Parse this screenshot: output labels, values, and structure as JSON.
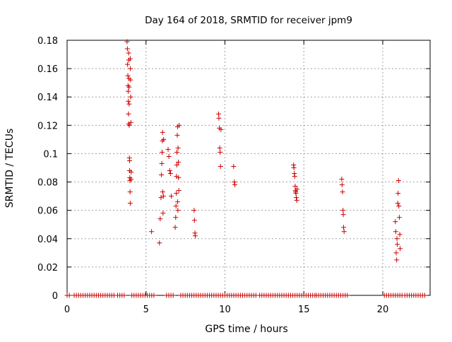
{
  "chart_data": {
    "type": "scatter",
    "title": "Day 164 of 2018, SRMTID for receiver jpm9",
    "xlabel": "GPS time / hours",
    "ylabel": "SRMTID / TECUs",
    "xlim": [
      0,
      23
    ],
    "ylim": [
      0,
      0.18
    ],
    "xticks": [
      0,
      5,
      10,
      15,
      20
    ],
    "xtick_labels": [
      "0",
      "5",
      "10",
      "15",
      "20"
    ],
    "yticks": [
      0,
      0.02,
      0.04,
      0.06,
      0.08,
      0.1,
      0.12,
      0.14,
      0.16,
      0.18
    ],
    "ytick_labels": [
      "0",
      "0.02",
      "0.04",
      "0.06",
      "0.08",
      "0.1",
      "0.12",
      "0.14",
      "0.16",
      "0.18"
    ],
    "grid": true,
    "marker": "+",
    "series": [
      {
        "name": "SRMTID",
        "color": "#cc0000",
        "x": [
          3.8,
          3.82,
          3.83,
          3.85,
          3.86,
          3.87,
          3.88,
          3.89,
          3.9,
          3.9,
          3.91,
          3.92,
          3.93,
          3.93,
          3.94,
          3.95,
          3.96,
          3.96,
          3.97,
          3.98,
          3.99,
          4.0,
          4.0,
          4.01,
          4.02,
          4.03,
          4.04,
          4.05,
          4.06,
          5.35,
          5.85,
          5.9,
          5.95,
          5.98,
          6.0,
          6.02,
          6.04,
          6.05,
          6.06,
          6.08,
          6.1,
          6.12,
          6.4,
          6.45,
          6.5,
          6.55,
          6.6,
          6.85,
          6.88,
          6.9,
          6.92,
          6.93,
          6.95,
          6.96,
          6.98,
          7.0,
          7.0,
          7.02,
          7.03,
          7.05,
          7.06,
          7.08,
          7.1,
          8.05,
          8.07,
          8.1,
          8.12,
          9.6,
          9.62,
          9.65,
          9.67,
          9.7,
          9.72,
          9.75,
          10.55,
          10.6,
          10.63,
          14.35,
          14.37,
          14.4,
          14.42,
          14.45,
          14.47,
          14.48,
          14.5,
          14.52,
          14.55,
          14.57,
          17.4,
          17.42,
          17.45,
          17.48,
          17.5,
          17.52,
          17.55,
          20.8,
          20.82,
          20.85,
          20.88,
          20.9,
          20.92,
          20.95,
          20.97,
          21.0,
          21.02,
          21.05,
          21.08,
          21.1
        ],
        "y": [
          0.179,
          0.174,
          0.163,
          0.155,
          0.148,
          0.144,
          0.137,
          0.128,
          0.121,
          0.171,
          0.166,
          0.153,
          0.147,
          0.135,
          0.12,
          0.097,
          0.095,
          0.088,
          0.083,
          0.081,
          0.073,
          0.065,
          0.167,
          0.16,
          0.152,
          0.14,
          0.122,
          0.082,
          0.087,
          0.045,
          0.037,
          0.054,
          0.069,
          0.085,
          0.093,
          0.101,
          0.109,
          0.115,
          0.073,
          0.058,
          0.07,
          0.11,
          0.103,
          0.098,
          0.088,
          0.086,
          0.07,
          0.048,
          0.055,
          0.063,
          0.072,
          0.084,
          0.092,
          0.101,
          0.113,
          0.119,
          0.066,
          0.06,
          0.104,
          0.094,
          0.083,
          0.074,
          0.12,
          0.06,
          0.053,
          0.044,
          0.042,
          0.128,
          0.125,
          0.118,
          0.104,
          0.101,
          0.091,
          0.117,
          0.091,
          0.08,
          0.078,
          0.092,
          0.09,
          0.086,
          0.084,
          0.077,
          0.074,
          0.073,
          0.072,
          0.069,
          0.067,
          0.075,
          0.082,
          0.078,
          0.073,
          0.06,
          0.057,
          0.048,
          0.045,
          0.052,
          0.045,
          0.03,
          0.025,
          0.04,
          0.036,
          0.065,
          0.072,
          0.081,
          0.063,
          0.055,
          0.043,
          0.033
        ]
      }
    ],
    "zero_band": {
      "y": 0,
      "x_ranges": [
        [
          0.0,
          0.15
        ],
        [
          0.45,
          3.0
        ],
        [
          3.2,
          3.75
        ],
        [
          4.1,
          5.6
        ],
        [
          6.3,
          6.8
        ],
        [
          7.2,
          7.8
        ],
        [
          7.9,
          12.0
        ],
        [
          12.2,
          15.7
        ],
        [
          15.8,
          17.8
        ],
        [
          20.1,
          21.3
        ],
        [
          21.4,
          22.7
        ]
      ],
      "step": 0.14
    }
  }
}
